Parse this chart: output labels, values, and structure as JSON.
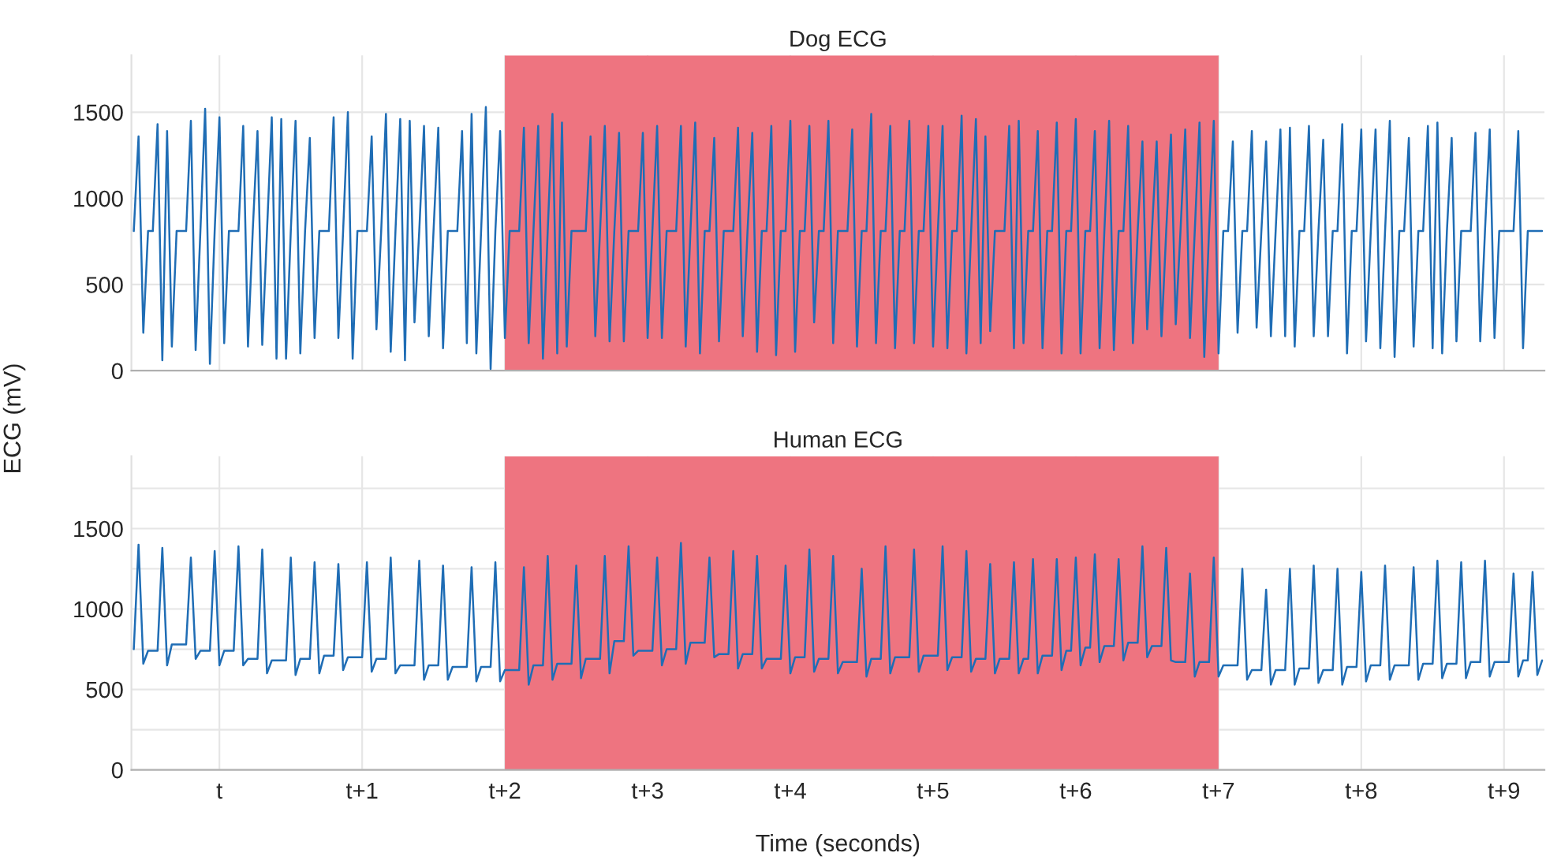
{
  "chart_data": [
    {
      "type": "line",
      "title": "Dog ECG",
      "ylim": [
        0,
        1830
      ],
      "tick_labels": "y",
      "categories": [
        null,
        null,
        null,
        null,
        null,
        null,
        null,
        null,
        null,
        null,
        null,
        null,
        null,
        null,
        null,
        null,
        null,
        null,
        "t",
        null,
        null,
        null,
        null,
        null,
        null,
        null,
        null,
        null,
        null,
        null,
        null,
        null,
        null,
        null,
        null,
        null,
        null,
        null,
        null,
        null,
        null,
        null,
        null,
        null,
        null,
        null,
        null,
        null,
        "t+1",
        null,
        null,
        null,
        null,
        null,
        null,
        null,
        null,
        null,
        null,
        null,
        null,
        null,
        null,
        null,
        null,
        null,
        null,
        null,
        null,
        null,
        null,
        null,
        null,
        null,
        null,
        null,
        null,
        null,
        "t+2",
        null,
        null,
        null,
        null,
        null,
        null,
        null,
        null,
        null,
        null,
        null,
        null,
        null,
        null,
        null,
        null,
        null,
        null,
        null,
        null,
        null,
        null,
        null,
        null,
        null,
        null,
        null,
        null,
        null,
        "t+3",
        null,
        null,
        null,
        null,
        null,
        null,
        null,
        null,
        null,
        null,
        null,
        null,
        null,
        null,
        null,
        null,
        null,
        null,
        null,
        null,
        null,
        null,
        null,
        null,
        null,
        null,
        null,
        null,
        null,
        "t+4",
        null,
        null,
        null,
        null,
        null,
        null,
        null,
        null,
        null,
        null,
        null,
        null,
        null,
        null,
        null,
        null,
        null,
        null,
        null,
        null,
        null,
        null,
        null,
        null,
        null,
        null,
        null,
        null,
        null,
        "t+5",
        null,
        null,
        null,
        null,
        null,
        null,
        null,
        null,
        null,
        null,
        null,
        null,
        null,
        null,
        null,
        null,
        null,
        null,
        null,
        null,
        null,
        null,
        null,
        null,
        null,
        null,
        null,
        null,
        null,
        "t+6",
        null,
        null,
        null,
        null,
        null,
        null,
        null,
        null,
        null,
        null,
        null,
        null,
        null,
        null,
        null,
        null,
        null,
        null,
        null,
        null,
        null,
        null,
        null,
        null,
        null,
        null,
        null,
        null,
        null,
        "t+7",
        null,
        null,
        null,
        null,
        null,
        null,
        null,
        null,
        null,
        null,
        null,
        null,
        null,
        null,
        null,
        null,
        null,
        null,
        null,
        null,
        null,
        null,
        null,
        null,
        null,
        null,
        null,
        null,
        null,
        "t+8",
        null,
        null,
        null,
        null,
        null,
        null,
        null,
        null,
        null,
        null,
        null,
        null,
        null,
        null,
        null,
        null,
        null,
        null,
        null,
        null,
        null,
        null,
        null,
        null,
        null,
        null,
        null,
        null,
        null,
        "t+9",
        null,
        null,
        null,
        null,
        null,
        null,
        null,
        null
      ],
      "yticks": [
        0,
        500,
        1000,
        1500
      ],
      "grid": true,
      "marker": "none",
      "line_style": "solid",
      "bands": [
        {
          "axis": "x",
          "from": "t+2",
          "to": "t+7",
          "color": "#ee7480"
        }
      ],
      "series": [
        {
          "color": "#1f6db5",
          "values": [
            810,
            1360,
            220,
            810,
            810,
            1430,
            60,
            1390,
            140,
            810,
            810,
            810,
            1450,
            120,
            810,
            1520,
            40,
            810,
            1470,
            160,
            810,
            810,
            810,
            1420,
            140,
            810,
            1390,
            150,
            810,
            1470,
            70,
            1460,
            70,
            810,
            1450,
            100,
            810,
            1350,
            190,
            810,
            810,
            810,
            1470,
            190,
            810,
            1500,
            70,
            810,
            810,
            810,
            1360,
            240,
            810,
            1490,
            110,
            810,
            1460,
            60,
            1450,
            280,
            810,
            1420,
            200,
            810,
            1410,
            130,
            810,
            810,
            810,
            1390,
            160,
            1490,
            100,
            810,
            1530,
            10,
            810,
            1390,
            190,
            810,
            810,
            810,
            1410,
            160,
            810,
            1420,
            70,
            810,
            1490,
            100,
            1440,
            140,
            810,
            810,
            810,
            810,
            1360,
            200,
            810,
            1420,
            170,
            810,
            1380,
            170,
            810,
            810,
            810,
            1380,
            190,
            810,
            1420,
            190,
            810,
            810,
            810,
            1420,
            140,
            810,
            1440,
            100,
            810,
            810,
            1350,
            170,
            810,
            810,
            810,
            1410,
            200,
            810,
            1380,
            110,
            810,
            810,
            1420,
            90,
            810,
            810,
            1450,
            110,
            810,
            810,
            1420,
            280,
            810,
            810,
            1450,
            160,
            810,
            810,
            810,
            1400,
            140,
            810,
            810,
            1490,
            160,
            810,
            810,
            1420,
            130,
            810,
            810,
            1450,
            160,
            810,
            810,
            1420,
            140,
            810,
            1420,
            130,
            810,
            810,
            1480,
            100,
            810,
            1460,
            160,
            1360,
            230,
            810,
            810,
            810,
            1420,
            130,
            1450,
            160,
            810,
            810,
            1390,
            130,
            810,
            810,
            1440,
            100,
            810,
            810,
            1460,
            100,
            810,
            810,
            1390,
            130,
            810,
            1450,
            120,
            810,
            810,
            1420,
            160,
            810,
            1330,
            240,
            810,
            1330,
            200,
            810,
            1370,
            270,
            810,
            1400,
            190,
            810,
            1440,
            80,
            810,
            1450,
            100,
            810,
            810,
            1330,
            220,
            810,
            810,
            1390,
            250,
            810,
            1330,
            200,
            810,
            1400,
            200,
            1410,
            140,
            810,
            810,
            1420,
            200,
            810,
            1340,
            200,
            810,
            810,
            1430,
            100,
            810,
            810,
            1400,
            170,
            810,
            1400,
            130,
            810,
            1450,
            80,
            810,
            810,
            1350,
            140,
            810,
            810,
            1420,
            130,
            1440,
            100,
            810,
            1350,
            170,
            810,
            810,
            810,
            1380,
            170,
            810,
            1400,
            190,
            810,
            810,
            810,
            810,
            1390,
            130,
            810,
            810,
            810,
            810
          ]
        }
      ]
    },
    {
      "type": "line",
      "title": "Human ECG",
      "xlabel": "Time (seconds)",
      "ylabel": "ECG (mV)",
      "ylim": [
        0,
        1950
      ],
      "categories": [
        null,
        null,
        null,
        null,
        null,
        null,
        null,
        null,
        null,
        null,
        null,
        null,
        null,
        null,
        null,
        null,
        null,
        null,
        "t",
        null,
        null,
        null,
        null,
        null,
        null,
        null,
        null,
        null,
        null,
        null,
        null,
        null,
        null,
        null,
        null,
        null,
        null,
        null,
        null,
        null,
        null,
        null,
        null,
        null,
        null,
        null,
        null,
        null,
        "t+1",
        null,
        null,
        null,
        null,
        null,
        null,
        null,
        null,
        null,
        null,
        null,
        null,
        null,
        null,
        null,
        null,
        null,
        null,
        null,
        null,
        null,
        null,
        null,
        null,
        null,
        null,
        null,
        null,
        null,
        "t+2",
        null,
        null,
        null,
        null,
        null,
        null,
        null,
        null,
        null,
        null,
        null,
        null,
        null,
        null,
        null,
        null,
        null,
        null,
        null,
        null,
        null,
        null,
        null,
        null,
        null,
        null,
        null,
        null,
        null,
        "t+3",
        null,
        null,
        null,
        null,
        null,
        null,
        null,
        null,
        null,
        null,
        null,
        null,
        null,
        null,
        null,
        null,
        null,
        null,
        null,
        null,
        null,
        null,
        null,
        null,
        null,
        null,
        null,
        null,
        null,
        "t+4",
        null,
        null,
        null,
        null,
        null,
        null,
        null,
        null,
        null,
        null,
        null,
        null,
        null,
        null,
        null,
        null,
        null,
        null,
        null,
        null,
        null,
        null,
        null,
        null,
        null,
        null,
        null,
        null,
        null,
        "t+5",
        null,
        null,
        null,
        null,
        null,
        null,
        null,
        null,
        null,
        null,
        null,
        null,
        null,
        null,
        null,
        null,
        null,
        null,
        null,
        null,
        null,
        null,
        null,
        null,
        null,
        null,
        null,
        null,
        null,
        "t+6",
        null,
        null,
        null,
        null,
        null,
        null,
        null,
        null,
        null,
        null,
        null,
        null,
        null,
        null,
        null,
        null,
        null,
        null,
        null,
        null,
        null,
        null,
        null,
        null,
        null,
        null,
        null,
        null,
        null,
        "t+7",
        null,
        null,
        null,
        null,
        null,
        null,
        null,
        null,
        null,
        null,
        null,
        null,
        null,
        null,
        null,
        null,
        null,
        null,
        null,
        null,
        null,
        null,
        null,
        null,
        null,
        null,
        null,
        null,
        null,
        "t+8",
        null,
        null,
        null,
        null,
        null,
        null,
        null,
        null,
        null,
        null,
        null,
        null,
        null,
        null,
        null,
        null,
        null,
        null,
        null,
        null,
        null,
        null,
        null,
        null,
        null,
        null,
        null,
        null,
        null,
        "t+9",
        null,
        null,
        null,
        null,
        null,
        null,
        null,
        null
      ],
      "yticks": [
        0,
        {
          "value": 250,
          "label": null
        },
        500,
        {
          "value": 750,
          "label": null
        },
        1000,
        {
          "value": 1250,
          "label": null
        },
        1500,
        {
          "value": 1750,
          "label": null
        }
      ],
      "grid": true,
      "marker": "none",
      "line_style": "solid",
      "bands": [
        {
          "axis": "x",
          "from": "t+2",
          "to": "t+7",
          "color": "#ee7480"
        }
      ],
      "series": [
        {
          "color": "#1f6db5",
          "values": [
            750,
            1400,
            660,
            740,
            740,
            740,
            1380,
            650,
            780,
            780,
            780,
            780,
            1320,
            690,
            740,
            740,
            740,
            1360,
            650,
            740,
            740,
            740,
            1390,
            650,
            690,
            690,
            690,
            1370,
            600,
            680,
            680,
            680,
            680,
            1320,
            590,
            690,
            690,
            690,
            1290,
            600,
            710,
            710,
            710,
            1280,
            620,
            700,
            700,
            700,
            700,
            1290,
            610,
            690,
            690,
            690,
            1320,
            600,
            650,
            650,
            650,
            650,
            1300,
            560,
            650,
            650,
            650,
            1270,
            560,
            640,
            640,
            640,
            640,
            1260,
            550,
            640,
            640,
            640,
            1290,
            550,
            620,
            620,
            620,
            620,
            1260,
            530,
            650,
            650,
            650,
            1330,
            560,
            660,
            660,
            660,
            660,
            1270,
            570,
            690,
            690,
            690,
            690,
            1330,
            600,
            800,
            800,
            800,
            1390,
            710,
            740,
            740,
            740,
            740,
            1320,
            650,
            750,
            750,
            750,
            1410,
            660,
            790,
            790,
            790,
            790,
            1320,
            700,
            720,
            720,
            720,
            1360,
            630,
            720,
            720,
            720,
            1330,
            630,
            690,
            690,
            690,
            690,
            1270,
            600,
            700,
            700,
            700,
            1370,
            610,
            690,
            690,
            690,
            1330,
            600,
            670,
            670,
            670,
            670,
            1250,
            580,
            690,
            690,
            690,
            1390,
            600,
            700,
            700,
            700,
            700,
            1370,
            610,
            710,
            710,
            710,
            710,
            1390,
            620,
            700,
            700,
            700,
            1360,
            610,
            690,
            690,
            690,
            1280,
            600,
            690,
            690,
            690,
            1290,
            600,
            690,
            690,
            1310,
            600,
            710,
            710,
            710,
            1310,
            620,
            740,
            740,
            1320,
            650,
            760,
            760,
            1340,
            670,
            770,
            770,
            770,
            1310,
            680,
            790,
            790,
            790,
            1390,
            700,
            770,
            770,
            770,
            1380,
            680,
            670,
            670,
            670,
            1220,
            580,
            670,
            670,
            670,
            1320,
            580,
            650,
            650,
            650,
            650,
            1250,
            560,
            620,
            620,
            620,
            1120,
            530,
            620,
            620,
            620,
            1250,
            530,
            630,
            630,
            630,
            1270,
            540,
            620,
            620,
            620,
            1250,
            530,
            640,
            640,
            640,
            1230,
            550,
            650,
            650,
            650,
            1270,
            560,
            650,
            650,
            650,
            650,
            1260,
            560,
            660,
            660,
            660,
            1300,
            570,
            660,
            660,
            660,
            1290,
            570,
            670,
            670,
            670,
            1300,
            580,
            670,
            670,
            670,
            670,
            1220,
            580,
            680,
            680,
            1230,
            590,
            680
          ]
        }
      ]
    }
  ]
}
